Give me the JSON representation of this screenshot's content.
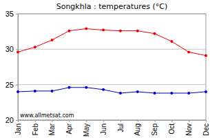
{
  "chart_data": {
    "type": "line",
    "title": "Songkhla : temperatures (°C)",
    "categories": [
      "Jan",
      "Feb",
      "Mar",
      "Apr",
      "May",
      "Jun",
      "Jul",
      "Aug",
      "Sep",
      "Oct",
      "Nov",
      "Dec"
    ],
    "series": [
      {
        "color": "#ee0000",
        "marker": "circle",
        "values": [
          29.6,
          30.3,
          31.3,
          32.6,
          32.9,
          32.7,
          32.6,
          32.6,
          32.2,
          31.1,
          29.6,
          29.1
        ]
      },
      {
        "color": "#0000cc",
        "marker": "circle",
        "values": [
          24.0,
          24.1,
          24.1,
          24.6,
          24.6,
          24.3,
          23.8,
          24.0,
          23.8,
          23.8,
          23.8,
          24.0
        ]
      }
    ],
    "ylim": [
      20,
      35
    ],
    "yticks": [
      20,
      25,
      30,
      35
    ],
    "grid": true,
    "annotation": "www.allmetsat.com"
  }
}
